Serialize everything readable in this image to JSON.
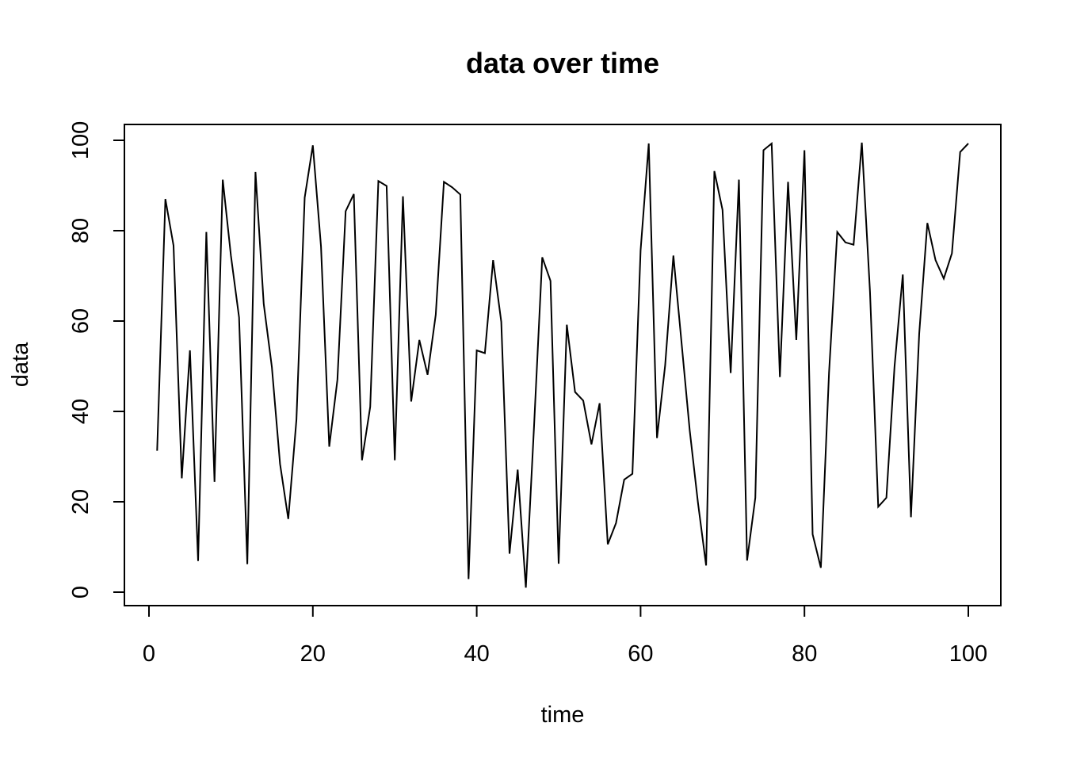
{
  "chart_data": {
    "type": "line",
    "title": "data over time",
    "xlabel": "time",
    "ylabel": "data",
    "xlim": [
      0,
      100
    ],
    "ylim": [
      0,
      100
    ],
    "xticks": [
      0,
      20,
      40,
      60,
      80,
      100
    ],
    "yticks": [
      0,
      20,
      40,
      60,
      80,
      100
    ],
    "grid": false,
    "series": [
      {
        "color": "#000000",
        "x": [
          1,
          2,
          3,
          4,
          5,
          6,
          7,
          8,
          9,
          10,
          11,
          12,
          13,
          14,
          15,
          16,
          17,
          18,
          19,
          20,
          21,
          22,
          23,
          24,
          25,
          26,
          27,
          28,
          29,
          30,
          31,
          32,
          33,
          34,
          35,
          36,
          37,
          38,
          39,
          40,
          41,
          42,
          43,
          44,
          45,
          46,
          47,
          48,
          49,
          50,
          51,
          52,
          53,
          54,
          55,
          56,
          57,
          58,
          59,
          60,
          61,
          62,
          63,
          64,
          65,
          66,
          67,
          68,
          69,
          70,
          71,
          72,
          73,
          74,
          75,
          76,
          77,
          78,
          79,
          80,
          81,
          82,
          83,
          84,
          85,
          86,
          87,
          88,
          89,
          90,
          91,
          92,
          93,
          94,
          95,
          96,
          97,
          98,
          99,
          100
        ],
        "values": [
          31.3,
          87,
          76.7,
          25.2,
          53.5,
          6.9,
          79.7,
          24.4,
          91.3,
          74.5,
          60.8,
          6.2,
          93,
          63.8,
          49.8,
          28.4,
          16.2,
          38.2,
          87.3,
          98.9,
          76.5,
          32.2,
          47,
          84.3,
          88.1,
          29.2,
          41,
          91,
          89.9,
          29.2,
          87.6,
          42.2,
          55.8,
          48.1,
          61.4,
          90.8,
          89.6,
          88,
          2.9,
          53.5,
          52.9,
          73.5,
          59.8,
          8.5,
          27.1,
          1,
          36.9,
          74.1,
          68.9,
          6.3,
          59.2,
          44.3,
          42.4,
          32.7,
          41.8,
          10.6,
          15.3,
          24.9,
          26.2,
          75.6,
          99.3,
          34.1,
          50.2,
          74.5,
          55.2,
          35.8,
          19.8,
          5.9,
          93.2,
          84.6,
          48.5,
          91.3,
          7,
          20.9,
          97.8,
          99.3,
          47.6,
          90.8,
          55.8,
          97.8,
          12.8,
          5.4,
          48.5,
          79.7,
          77.4,
          76.9,
          99.5,
          66.5,
          18.9,
          20.9,
          50,
          70.3,
          16.6,
          57.2,
          81.7,
          73.5,
          69.4,
          75,
          97.4,
          99.3
        ]
      }
    ]
  }
}
